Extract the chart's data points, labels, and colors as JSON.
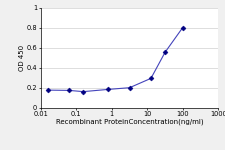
{
  "x": [
    0.016,
    0.064,
    0.16,
    0.8,
    3.2,
    12.8,
    32,
    100
  ],
  "y": [
    0.178,
    0.175,
    0.163,
    0.185,
    0.202,
    0.295,
    0.555,
    0.8
  ],
  "line_color": "#4444bb",
  "marker_color": "#000080",
  "marker_style": "D",
  "marker_size": 2.5,
  "line_width": 0.8,
  "xlabel": "Recombinant ProteinConcentration(ng/ml)",
  "ylabel": "OD 450",
  "xlim": [
    0.01,
    1000
  ],
  "ylim": [
    0,
    1
  ],
  "yticks": [
    0,
    0.2,
    0.4,
    0.6,
    0.8,
    1
  ],
  "ytick_labels": [
    "0",
    "0.2",
    "0.4",
    "0.6",
    "0.8",
    "1"
  ],
  "xticks": [
    0.01,
    0.1,
    1,
    10,
    100,
    1000
  ],
  "xtick_labels": [
    "0.01",
    "0.1",
    "1",
    "10",
    "100",
    "1000"
  ],
  "grid_color": "#d0d0d0",
  "bg_color": "#f0f0f0",
  "plot_bg": "#ffffff",
  "label_fontsize": 5.0,
  "tick_fontsize": 4.8
}
